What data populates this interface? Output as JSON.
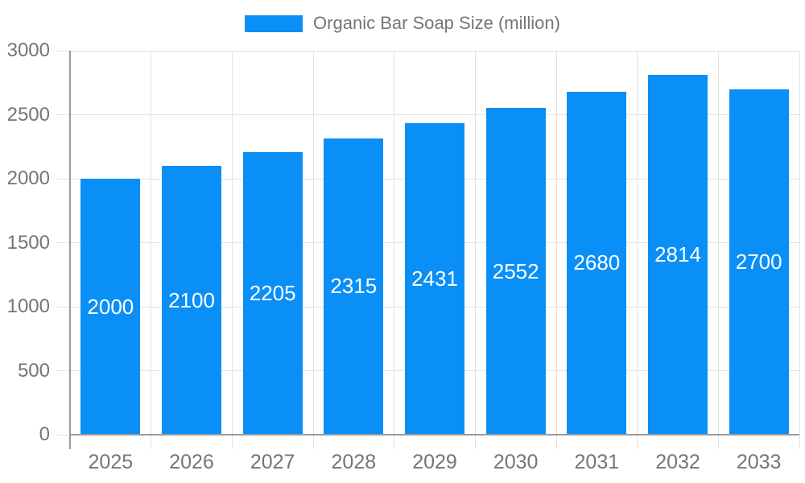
{
  "legend": {
    "label": "Organic Bar Soap Size (million)"
  },
  "chart_data": {
    "type": "bar",
    "title": "Organic Bar Soap Size (million)",
    "categories": [
      "2025",
      "2026",
      "2027",
      "2028",
      "2029",
      "2030",
      "2031",
      "2032",
      "2033"
    ],
    "series": [
      {
        "name": "Organic Bar Soap Size (million)",
        "values": [
          2000,
          2100,
          2205,
          2315,
          2431,
          2552,
          2680,
          2814,
          2700
        ]
      }
    ],
    "xlabel": "",
    "ylabel": "",
    "ylim": [
      0,
      3000
    ],
    "yticks": [
      0,
      500,
      1000,
      1500,
      2000,
      2500,
      3000
    ],
    "grid": true,
    "legend_position": "top",
    "bar_labels_visible": true
  },
  "colors": {
    "bar": "#0a8ff7",
    "bar_label": "#ffffff",
    "grid": "#e2e2e2",
    "axis": "#9a9a9a",
    "text": "#757575",
    "background": "#ffffff"
  }
}
